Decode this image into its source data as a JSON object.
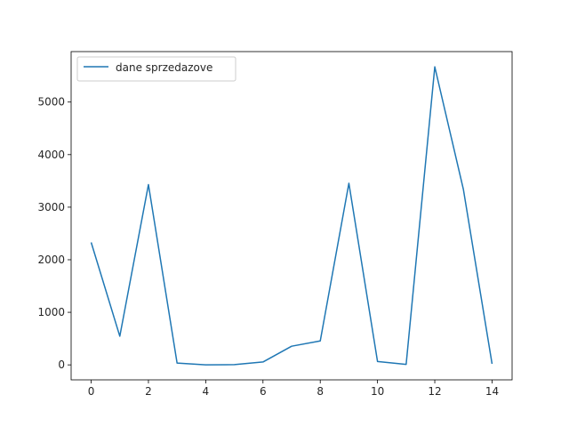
{
  "chart_data": {
    "type": "line",
    "title": "",
    "xlabel": "",
    "ylabel": "",
    "x": [
      0,
      1,
      2,
      3,
      4,
      5,
      6,
      7,
      8,
      9,
      10,
      11,
      12,
      13,
      14
    ],
    "series": [
      {
        "name": "dane sprzedazove",
        "color": "#1f77b4",
        "values": [
          2330,
          545,
          3430,
          35,
          0,
          5,
          55,
          355,
          455,
          3455,
          65,
          10,
          5670,
          3335,
          20
        ]
      }
    ],
    "xlim": [
      -0.7,
      14.7
    ],
    "ylim": [
      -285,
      5960
    ],
    "xticks": [
      0,
      2,
      4,
      6,
      8,
      10,
      12,
      14
    ],
    "yticks": [
      0,
      1000,
      2000,
      3000,
      4000,
      5000
    ],
    "grid": false,
    "legend": {
      "position": "top-left",
      "entries": [
        "dane sprzedazove"
      ]
    }
  }
}
